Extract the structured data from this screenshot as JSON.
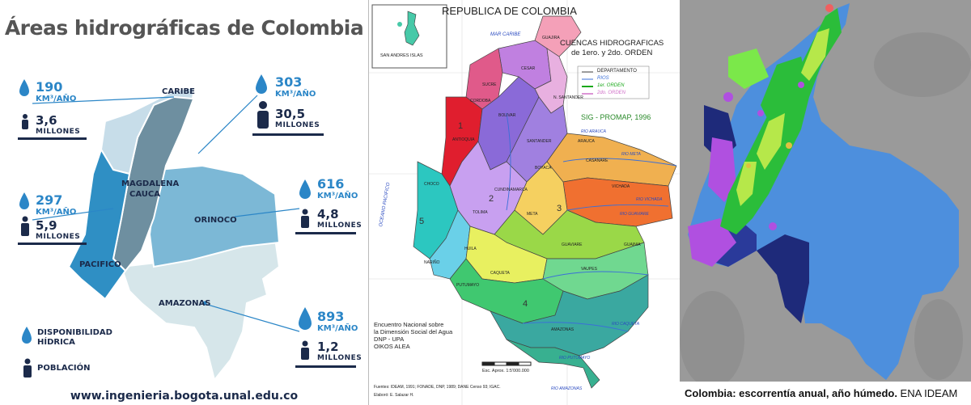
{
  "panel1": {
    "title": "Áreas hidrográficas de Colombia",
    "unit_km": "KM³/AÑO",
    "unit_pop": "MILLONES",
    "stats": [
      {
        "region": "CARIBE",
        "water": "190",
        "pop": "3,6"
      },
      {
        "region": "MAGDALENA CAUCA",
        "water": "303",
        "pop": "30,5"
      },
      {
        "region": "PACIFICO",
        "water": "297",
        "pop": "5,9"
      },
      {
        "region": "ORINOCO",
        "water": "616",
        "pop": "4,8"
      },
      {
        "region": "AMAZONAS",
        "water": "893",
        "pop": "1,2"
      }
    ],
    "regions": {
      "caribe": "CARIBE",
      "magdalena": "MAGDALENA",
      "cauca": "CAUCA",
      "orinoco": "ORINOCO",
      "pacifico": "PACIFICO",
      "amazonas": "AMAZONAS"
    },
    "legend": {
      "water": "DISPONIBILIDAD HÍDRICA",
      "water_line1": "DISPONIBILIDAD",
      "water_line2": "HÍDRICA",
      "pop": "POBLACIÓN"
    },
    "footer": "www.ingenieria.bogota.unal.edu.co",
    "colors": {
      "caribe": "#c7dde9",
      "magdalena": "#6e8fa0",
      "pacifico": "#2f8fc4",
      "orinoco": "#7cb8d6",
      "amazonas": "#d6e6ea",
      "accent": "#2b86c7",
      "dark": "#1b2a4a"
    }
  },
  "panel2": {
    "title": "REPUBLICA DE COLOMBIA",
    "subtitle_line1": "CUENCAS HIDROGRAFICAS",
    "subtitle_line2": "de 1ero. y 2do. ORDEN",
    "legend": [
      {
        "label": "DEPARTAMENTO",
        "color": "#444444"
      },
      {
        "label": "RIOS",
        "color": "#3a6fd8"
      },
      {
        "label": "1er. ORDEN",
        "color": "#1aa81a"
      },
      {
        "label": "2do. ORDEN",
        "color": "#d070c8"
      }
    ],
    "source": "SIG - PROMAP, 1996",
    "islands": "SAN ANDRES ISLAS",
    "sea": "MAR CARIBE",
    "ocean": "OCEANO PACIFICO",
    "credits": [
      "Encuentro Nacional sobre",
      "la Dimensión Social del Agua",
      "DNP - UPA",
      "OIKOS ALEA"
    ],
    "scale": "Esc. Aprox. 1:5'000.000",
    "fuentes": "Fuentes: IDEAM, 1991; FONADE, DNP, 1989; DANE Censo 93; IGAC.",
    "elaboro": "Elaboró: E. Salazar H.",
    "places": [
      "GUAJIRA",
      "CESAR",
      "CORDOBA",
      "SUCRE",
      "BOLIVAR",
      "ANTIOQUIA",
      "CHOCO",
      "SANTANDER",
      "BOYACA",
      "CUNDINAMARCA",
      "META",
      "ARAUCA",
      "CASANARE",
      "VICHADA",
      "GUAVIARE",
      "GUAINIA",
      "CAQUETA",
      "VAUPES",
      "AMAZONAS",
      "NARIÑO",
      "HUILA",
      "TOLIMA",
      "PUTUMAYO",
      "N. SANTANDER"
    ],
    "rivers": [
      "RIO META",
      "RIO GUAVIARE",
      "RIO CAQUETA",
      "RIO PUTUMAYO",
      "RIO AMAZONAS",
      "RIO ARAUCA",
      "RIO VICHADA"
    ],
    "region_numbers": [
      "1",
      "2",
      "3",
      "4",
      "5"
    ]
  },
  "panel3": {
    "caption_bold": "Colombia: escorrentía anual, año húmedo.",
    "caption_rest": " ENA IDEAM",
    "colors": {
      "blue": "#4d8fdd",
      "navy": "#1e2a7a",
      "green": "#2bbd3a",
      "yellowgreen": "#b6e84a",
      "purple": "#b050e0",
      "bg": "#9a9a9a"
    }
  }
}
